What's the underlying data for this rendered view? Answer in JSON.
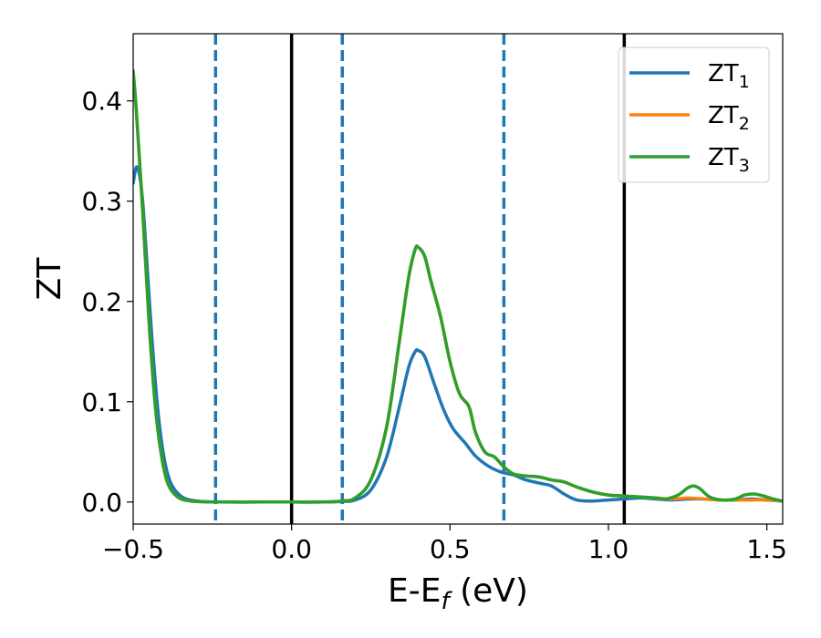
{
  "chart_data": {
    "type": "line",
    "xlabel_main": "E-E",
    "xlabel_sub": "f",
    "xlabel_unit": " (eV)",
    "ylabel": "ZT",
    "xlim": [
      -0.5,
      1.55
    ],
    "ylim": [
      -0.022,
      0.467
    ],
    "x_ticks": [
      -0.5,
      0.0,
      0.5,
      1.0,
      1.5
    ],
    "x_tick_labels": [
      "−0.5",
      "0.0",
      "0.5",
      "1.0",
      "1.5"
    ],
    "y_ticks": [
      0.0,
      0.1,
      0.2,
      0.3,
      0.4
    ],
    "y_tick_labels": [
      "0.0",
      "0.1",
      "0.2",
      "0.3",
      "0.4"
    ],
    "grid": false,
    "legend_position": "top-right",
    "vlines_solid": [
      0.0,
      1.05
    ],
    "vlines_dashed": [
      -0.24,
      0.16,
      0.67
    ],
    "vline_solid_color": "#000000",
    "vline_dashed_color": "#1f77b4",
    "series": [
      {
        "name_main": "ZT",
        "name_sub": "1",
        "color": "#1f77b4",
        "points": [
          [
            -0.5,
            0.318
          ],
          [
            -0.49,
            0.334
          ],
          [
            -0.48,
            0.326
          ],
          [
            -0.47,
            0.3
          ],
          [
            -0.46,
            0.255
          ],
          [
            -0.44,
            0.16
          ],
          [
            -0.42,
            0.085
          ],
          [
            -0.4,
            0.04
          ],
          [
            -0.38,
            0.018
          ],
          [
            -0.35,
            0.006
          ],
          [
            -0.32,
            0.002
          ],
          [
            -0.28,
            0.0005
          ],
          [
            -0.24,
            0.0
          ],
          [
            -0.1,
            0.0
          ],
          [
            0.0,
            0.0
          ],
          [
            0.1,
            0.0
          ],
          [
            0.16,
            0.0005
          ],
          [
            0.2,
            0.002
          ],
          [
            0.25,
            0.012
          ],
          [
            0.3,
            0.045
          ],
          [
            0.34,
            0.095
          ],
          [
            0.37,
            0.135
          ],
          [
            0.39,
            0.15
          ],
          [
            0.4,
            0.151
          ],
          [
            0.42,
            0.145
          ],
          [
            0.45,
            0.118
          ],
          [
            0.48,
            0.092
          ],
          [
            0.51,
            0.073
          ],
          [
            0.55,
            0.058
          ],
          [
            0.58,
            0.046
          ],
          [
            0.62,
            0.036
          ],
          [
            0.66,
            0.03
          ],
          [
            0.7,
            0.027
          ],
          [
            0.74,
            0.022
          ],
          [
            0.78,
            0.019
          ],
          [
            0.82,
            0.016
          ],
          [
            0.86,
            0.008
          ],
          [
            0.9,
            0.002
          ],
          [
            0.95,
            0.001
          ],
          [
            1.0,
            0.002
          ],
          [
            1.05,
            0.003
          ],
          [
            1.1,
            0.004
          ],
          [
            1.15,
            0.003
          ],
          [
            1.2,
            0.002
          ],
          [
            1.25,
            0.003
          ],
          [
            1.3,
            0.003
          ],
          [
            1.35,
            0.002
          ],
          [
            1.4,
            0.002
          ],
          [
            1.45,
            0.003
          ],
          [
            1.5,
            0.002
          ],
          [
            1.55,
            0.001
          ]
        ]
      },
      {
        "name_main": "ZT",
        "name_sub": "2",
        "color": "#ff7f0e",
        "points": [
          [
            -0.5,
            0.43
          ],
          [
            -0.49,
            0.39
          ],
          [
            -0.47,
            0.29
          ],
          [
            -0.45,
            0.18
          ],
          [
            -0.43,
            0.095
          ],
          [
            -0.41,
            0.045
          ],
          [
            -0.39,
            0.018
          ],
          [
            -0.36,
            0.005
          ],
          [
            -0.32,
            0.001
          ],
          [
            -0.28,
            0.0003
          ],
          [
            -0.24,
            0.0
          ],
          [
            -0.1,
            0.0
          ],
          [
            0.0,
            0.0
          ],
          [
            0.1,
            0.0
          ],
          [
            0.16,
            0.001
          ],
          [
            0.2,
            0.004
          ],
          [
            0.25,
            0.022
          ],
          [
            0.3,
            0.075
          ],
          [
            0.34,
            0.16
          ],
          [
            0.37,
            0.225
          ],
          [
            0.39,
            0.252
          ],
          [
            0.4,
            0.254
          ],
          [
            0.42,
            0.245
          ],
          [
            0.44,
            0.22
          ],
          [
            0.47,
            0.185
          ],
          [
            0.5,
            0.14
          ],
          [
            0.53,
            0.108
          ],
          [
            0.56,
            0.095
          ],
          [
            0.58,
            0.07
          ],
          [
            0.61,
            0.05
          ],
          [
            0.64,
            0.045
          ],
          [
            0.67,
            0.035
          ],
          [
            0.7,
            0.028
          ],
          [
            0.74,
            0.026
          ],
          [
            0.78,
            0.025
          ],
          [
            0.82,
            0.022
          ],
          [
            0.86,
            0.02
          ],
          [
            0.9,
            0.015
          ],
          [
            0.95,
            0.01
          ],
          [
            1.0,
            0.007
          ],
          [
            1.05,
            0.006
          ],
          [
            1.1,
            0.005
          ],
          [
            1.15,
            0.004
          ],
          [
            1.2,
            0.003
          ],
          [
            1.25,
            0.004
          ],
          [
            1.3,
            0.003
          ],
          [
            1.35,
            0.002
          ],
          [
            1.4,
            0.002
          ],
          [
            1.45,
            0.002
          ],
          [
            1.5,
            0.002
          ],
          [
            1.55,
            0.001
          ]
        ]
      },
      {
        "name_main": "ZT",
        "name_sub": "3",
        "color": "#2ca02c",
        "points": [
          [
            -0.5,
            0.43
          ],
          [
            -0.49,
            0.39
          ],
          [
            -0.47,
            0.29
          ],
          [
            -0.45,
            0.18
          ],
          [
            -0.43,
            0.095
          ],
          [
            -0.41,
            0.045
          ],
          [
            -0.39,
            0.018
          ],
          [
            -0.36,
            0.005
          ],
          [
            -0.32,
            0.001
          ],
          [
            -0.28,
            0.0003
          ],
          [
            -0.24,
            0.0
          ],
          [
            -0.1,
            0.0
          ],
          [
            0.0,
            0.0
          ],
          [
            0.1,
            0.0
          ],
          [
            0.16,
            0.001
          ],
          [
            0.2,
            0.004
          ],
          [
            0.25,
            0.022
          ],
          [
            0.3,
            0.075
          ],
          [
            0.34,
            0.16
          ],
          [
            0.37,
            0.225
          ],
          [
            0.39,
            0.252
          ],
          [
            0.4,
            0.254
          ],
          [
            0.42,
            0.245
          ],
          [
            0.44,
            0.22
          ],
          [
            0.47,
            0.185
          ],
          [
            0.5,
            0.14
          ],
          [
            0.53,
            0.108
          ],
          [
            0.56,
            0.095
          ],
          [
            0.58,
            0.07
          ],
          [
            0.61,
            0.05
          ],
          [
            0.64,
            0.045
          ],
          [
            0.67,
            0.035
          ],
          [
            0.7,
            0.028
          ],
          [
            0.74,
            0.026
          ],
          [
            0.78,
            0.025
          ],
          [
            0.82,
            0.022
          ],
          [
            0.86,
            0.02
          ],
          [
            0.9,
            0.015
          ],
          [
            0.95,
            0.01
          ],
          [
            1.0,
            0.007
          ],
          [
            1.05,
            0.006
          ],
          [
            1.1,
            0.005
          ],
          [
            1.15,
            0.004
          ],
          [
            1.18,
            0.003
          ],
          [
            1.22,
            0.007
          ],
          [
            1.25,
            0.014
          ],
          [
            1.27,
            0.016
          ],
          [
            1.29,
            0.013
          ],
          [
            1.32,
            0.005
          ],
          [
            1.36,
            0.002
          ],
          [
            1.4,
            0.003
          ],
          [
            1.43,
            0.007
          ],
          [
            1.46,
            0.008
          ],
          [
            1.49,
            0.006
          ],
          [
            1.52,
            0.003
          ],
          [
            1.55,
            0.001
          ]
        ]
      }
    ]
  }
}
